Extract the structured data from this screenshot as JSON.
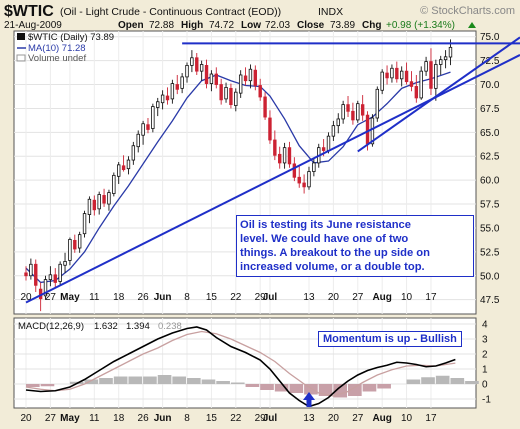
{
  "header": {
    "symbol": "$WTIC",
    "description": "(Oil - Light Crude - Continuous Contract (EOD))",
    "exchange": "INDX",
    "date": "21-Aug-2009",
    "open_label": "Open",
    "open": "72.88",
    "high_label": "High",
    "high": "74.72",
    "low_label": "Low",
    "low": "72.03",
    "close_label": "Close",
    "close": "73.89",
    "chg_label": "Chg",
    "chg": "+0.98 (+1.34%)",
    "watermark": "© StockCharts.com"
  },
  "legend": {
    "price": "$WTIC (Daily) 73.89",
    "ma": "MA(10) 71.28",
    "volume": "Volume undef"
  },
  "annotations": {
    "main": [
      "Oil is testing its June resistance",
      "level. We could have one of two",
      "things. A breakout to the up side on",
      "increased volume, or a double top."
    ],
    "momentum": "Momentum is up - Bullish"
  },
  "macd_label": {
    "title": "MACD(12,26,9)",
    "macd": "1.632",
    "signal": "1.394",
    "hist": "0.238"
  },
  "colors": {
    "up": "#111111",
    "down": "#cc2233",
    "ma": "#2a3aa8",
    "trendline": "#1f2fc8",
    "macd": "#000000",
    "signal": "#c8a0a0",
    "hist_pos": "#b8b8b8",
    "hist_neg": "#c8a0a8",
    "panel_bg": "#ffffff",
    "frame_bg": "#f2ecd8"
  },
  "chart_data": [
    {
      "type": "candlestick",
      "title": "$WTIC (Oil - Light Crude - Continuous Contract (EOD))",
      "y_ticks": [
        47.5,
        50.0,
        52.5,
        55.0,
        57.5,
        60.0,
        62.5,
        65.0,
        67.5,
        70.0,
        72.5,
        75.0
      ],
      "ylim": [
        46.0,
        75.6
      ],
      "x_ticks": [
        {
          "label": "20",
          "i": 0
        },
        {
          "label": "27",
          "i": 5
        },
        {
          "label": "May",
          "i": 9
        },
        {
          "label": "11",
          "i": 14
        },
        {
          "label": "18",
          "i": 19
        },
        {
          "label": "26",
          "i": 24
        },
        {
          "label": "Jun",
          "i": 28
        },
        {
          "label": "8",
          "i": 33
        },
        {
          "label": "15",
          "i": 38
        },
        {
          "label": "22",
          "i": 43
        },
        {
          "label": "29",
          "i": 48
        },
        {
          "label": "Jul",
          "i": 50
        },
        {
          "label": "13",
          "i": 58
        },
        {
          "label": "20",
          "i": 63
        },
        {
          "label": "27",
          "i": 68
        },
        {
          "label": "Aug",
          "i": 73
        },
        {
          "label": "10",
          "i": 78
        },
        {
          "label": "17",
          "i": 83
        }
      ],
      "candles": [
        [
          50.3,
          51.0,
          49.5,
          50.0
        ],
        [
          50.0,
          51.8,
          49.6,
          51.2
        ],
        [
          51.2,
          51.7,
          48.3,
          49.0
        ],
        [
          48.6,
          49.3,
          46.3,
          47.6
        ],
        [
          47.9,
          50.0,
          47.5,
          49.6
        ],
        [
          49.6,
          51.0,
          48.9,
          50.1
        ],
        [
          50.1,
          50.8,
          48.8,
          49.3
        ],
        [
          49.4,
          51.5,
          49.0,
          51.2
        ],
        [
          51.1,
          52.4,
          50.3,
          51.5
        ],
        [
          51.6,
          54.0,
          51.1,
          53.8
        ],
        [
          53.7,
          54.3,
          52.4,
          52.8
        ],
        [
          52.9,
          54.6,
          52.4,
          54.3
        ],
        [
          54.4,
          56.8,
          54.0,
          56.5
        ],
        [
          56.4,
          58.3,
          55.5,
          58.0
        ],
        [
          57.9,
          58.4,
          56.3,
          56.9
        ],
        [
          57.0,
          58.8,
          56.4,
          58.5
        ],
        [
          58.4,
          59.1,
          57.2,
          57.6
        ],
        [
          57.5,
          59.0,
          56.8,
          58.7
        ],
        [
          58.6,
          60.8,
          58.3,
          60.5
        ],
        [
          60.4,
          61.9,
          59.6,
          61.6
        ],
        [
          61.5,
          62.6,
          60.9,
          61.1
        ],
        [
          61.2,
          62.5,
          60.6,
          62.1
        ],
        [
          62.1,
          64.0,
          61.6,
          63.6
        ],
        [
          63.5,
          65.2,
          62.9,
          64.8
        ],
        [
          64.7,
          66.2,
          63.7,
          65.9
        ],
        [
          65.8,
          66.5,
          64.9,
          65.3
        ],
        [
          65.4,
          68.0,
          65.0,
          67.7
        ],
        [
          67.6,
          68.6,
          66.7,
          68.2
        ],
        [
          68.1,
          69.4,
          67.4,
          68.9
        ],
        [
          68.8,
          69.7,
          67.9,
          68.4
        ],
        [
          68.5,
          70.5,
          68.0,
          70.1
        ],
        [
          70.0,
          71.0,
          69.0,
          69.5
        ],
        [
          69.6,
          71.2,
          69.1,
          70.8
        ],
        [
          70.8,
          72.3,
          70.2,
          72.0
        ],
        [
          72.0,
          73.6,
          71.3,
          72.8
        ],
        [
          72.8,
          73.3,
          71.0,
          71.4
        ],
        [
          71.4,
          72.5,
          70.4,
          72.1
        ],
        [
          72.0,
          72.6,
          69.6,
          70.1
        ],
        [
          70.1,
          71.5,
          69.3,
          71.1
        ],
        [
          71.1,
          71.8,
          69.6,
          70.0
        ],
        [
          70.0,
          70.6,
          67.9,
          68.4
        ],
        [
          68.5,
          70.2,
          68.1,
          69.7
        ],
        [
          69.6,
          70.1,
          67.5,
          67.9
        ],
        [
          67.8,
          69.6,
          67.2,
          69.2
        ],
        [
          69.1,
          71.5,
          68.6,
          71.0
        ],
        [
          70.9,
          71.8,
          69.9,
          70.4
        ],
        [
          70.4,
          72.1,
          69.6,
          71.6
        ],
        [
          71.5,
          72.0,
          69.4,
          69.9
        ],
        [
          69.9,
          70.6,
          68.3,
          68.7
        ],
        [
          68.7,
          69.2,
          66.3,
          66.6
        ],
        [
          66.5,
          67.3,
          63.8,
          64.2
        ],
        [
          64.2,
          65.2,
          62.1,
          62.6
        ],
        [
          62.7,
          63.5,
          61.2,
          61.8
        ],
        [
          61.8,
          63.9,
          61.2,
          63.4
        ],
        [
          63.4,
          64.0,
          61.3,
          61.7
        ],
        [
          61.7,
          62.4,
          59.9,
          60.3
        ],
        [
          60.3,
          61.5,
          59.2,
          59.7
        ],
        [
          59.7,
          60.6,
          58.6,
          59.3
        ],
        [
          59.3,
          61.4,
          59.0,
          60.9
        ],
        [
          60.9,
          62.3,
          60.4,
          61.8
        ],
        [
          61.8,
          63.8,
          61.3,
          63.4
        ],
        [
          63.4,
          64.3,
          62.5,
          63.1
        ],
        [
          63.1,
          65.0,
          62.8,
          64.6
        ],
        [
          64.6,
          66.2,
          64.1,
          65.7
        ],
        [
          65.7,
          67.0,
          64.9,
          66.4
        ],
        [
          66.4,
          68.3,
          65.9,
          67.9
        ],
        [
          67.9,
          68.8,
          66.6,
          67.2
        ],
        [
          67.2,
          68.1,
          65.8,
          66.3
        ],
        [
          66.3,
          68.3,
          66.0,
          68.0
        ],
        [
          67.9,
          68.9,
          66.2,
          66.8
        ],
        [
          66.8,
          67.2,
          63.1,
          63.8
        ],
        [
          63.8,
          66.9,
          63.5,
          66.5
        ],
        [
          66.5,
          69.8,
          66.1,
          69.5
        ],
        [
          69.4,
          71.6,
          69.0,
          71.3
        ],
        [
          71.2,
          72.0,
          70.0,
          70.7
        ],
        [
          70.7,
          72.1,
          70.2,
          71.7
        ],
        [
          71.7,
          72.4,
          70.2,
          70.6
        ],
        [
          70.6,
          71.9,
          69.8,
          71.4
        ],
        [
          71.4,
          72.3,
          70.0,
          70.3
        ],
        [
          70.3,
          71.4,
          69.3,
          69.8
        ],
        [
          69.8,
          71.0,
          68.1,
          68.6
        ],
        [
          68.6,
          71.9,
          68.4,
          71.4
        ],
        [
          71.4,
          72.9,
          70.9,
          72.4
        ],
        [
          72.4,
          73.8,
          68.9,
          69.6
        ],
        [
          69.6,
          72.6,
          68.3,
          72.1
        ],
        [
          72.1,
          73.0,
          71.0,
          72.6
        ],
        [
          72.6,
          73.6,
          71.7,
          72.9
        ],
        [
          72.88,
          74.72,
          72.03,
          73.89
        ]
      ],
      "ma10": [
        [
          0,
          50.8
        ],
        [
          3,
          49.3
        ],
        [
          6,
          49.5
        ],
        [
          9,
          50.7
        ],
        [
          12,
          52.5
        ],
        [
          15,
          55.0
        ],
        [
          18,
          57.3
        ],
        [
          21,
          59.4
        ],
        [
          24,
          61.7
        ],
        [
          27,
          64.0
        ],
        [
          30,
          66.2
        ],
        [
          33,
          68.6
        ],
        [
          36,
          70.4
        ],
        [
          39,
          71.0
        ],
        [
          42,
          70.4
        ],
        [
          45,
          69.9
        ],
        [
          48,
          69.8
        ],
        [
          50,
          68.8
        ],
        [
          53,
          66.4
        ],
        [
          56,
          63.6
        ],
        [
          59,
          61.8
        ],
        [
          62,
          62.0
        ],
        [
          65,
          63.5
        ],
        [
          68,
          65.8
        ],
        [
          71,
          66.6
        ],
        [
          74,
          68.0
        ],
        [
          77,
          69.6
        ],
        [
          80,
          70.2
        ],
        [
          83,
          70.6
        ],
        [
          87,
          71.3
        ]
      ],
      "trendlines": [
        {
          "from": [
            0,
            47.2
          ],
          "to": [
            95,
            72.2
          ]
        },
        {
          "from": [
            68,
            63.0
          ],
          "to": [
            95,
            73.6
          ]
        },
        {
          "from": [
            32,
            74.3
          ],
          "to": [
            95,
            74.3
          ]
        }
      ]
    },
    {
      "type": "line",
      "title": "MACD(12,26,9)",
      "y_ticks": [
        -1,
        0,
        1,
        2,
        3,
        4
      ],
      "ylim": [
        -1.6,
        4.4
      ],
      "macd": [
        [
          0,
          -0.4
        ],
        [
          3,
          -0.5
        ],
        [
          6,
          -0.45
        ],
        [
          9,
          -0.2
        ],
        [
          12,
          0.3
        ],
        [
          15,
          0.9
        ],
        [
          18,
          1.5
        ],
        [
          21,
          2.0
        ],
        [
          24,
          2.5
        ],
        [
          27,
          3.0
        ],
        [
          30,
          3.4
        ],
        [
          33,
          3.7
        ],
        [
          35,
          3.8
        ],
        [
          37,
          3.6
        ],
        [
          39,
          3.1
        ],
        [
          42,
          2.5
        ],
        [
          45,
          2.1
        ],
        [
          48,
          1.6
        ],
        [
          50,
          1.0
        ],
        [
          52,
          0.2
        ],
        [
          54,
          -0.6
        ],
        [
          56,
          -1.1
        ],
        [
          58,
          -1.5
        ],
        [
          60,
          -1.3
        ],
        [
          62,
          -0.9
        ],
        [
          64,
          -0.3
        ],
        [
          66,
          0.2
        ],
        [
          68,
          0.6
        ],
        [
          70,
          0.9
        ],
        [
          72,
          1.1
        ],
        [
          74,
          1.25
        ],
        [
          76,
          1.45
        ],
        [
          78,
          1.4
        ],
        [
          80,
          1.3
        ],
        [
          82,
          1.15
        ],
        [
          84,
          1.2
        ],
        [
          86,
          1.4
        ],
        [
          88,
          1.632
        ]
      ],
      "signal": [
        [
          0,
          -0.2
        ],
        [
          3,
          -0.35
        ],
        [
          6,
          -0.45
        ],
        [
          9,
          -0.35
        ],
        [
          12,
          0.0
        ],
        [
          15,
          0.5
        ],
        [
          18,
          1.0
        ],
        [
          21,
          1.5
        ],
        [
          24,
          2.0
        ],
        [
          27,
          2.4
        ],
        [
          30,
          2.9
        ],
        [
          33,
          3.3
        ],
        [
          36,
          3.5
        ],
        [
          39,
          3.35
        ],
        [
          42,
          3.0
        ],
        [
          45,
          2.55
        ],
        [
          48,
          2.1
        ],
        [
          51,
          1.5
        ],
        [
          54,
          0.7
        ],
        [
          57,
          0.0
        ],
        [
          60,
          -0.6
        ],
        [
          63,
          -0.8
        ],
        [
          66,
          -0.5
        ],
        [
          69,
          0.1
        ],
        [
          72,
          0.6
        ],
        [
          75,
          0.95
        ],
        [
          78,
          1.2
        ],
        [
          81,
          1.25
        ],
        [
          84,
          1.2
        ],
        [
          86,
          1.3
        ],
        [
          88,
          1.394
        ]
      ],
      "histogram_step": 3,
      "histogram": [
        -0.2,
        -0.15,
        0.0,
        0.15,
        0.3,
        0.4,
        0.5,
        0.5,
        0.5,
        0.6,
        0.5,
        0.4,
        0.3,
        0.2,
        0.1,
        -0.2,
        -0.4,
        -0.5,
        -0.6,
        -0.7,
        -0.8,
        -0.9,
        -0.8,
        -0.5,
        -0.3,
        0.0,
        0.3,
        0.45,
        0.55,
        0.4,
        0.2
      ],
      "histogram_last": 0.238,
      "arrow_at": 58
    }
  ]
}
